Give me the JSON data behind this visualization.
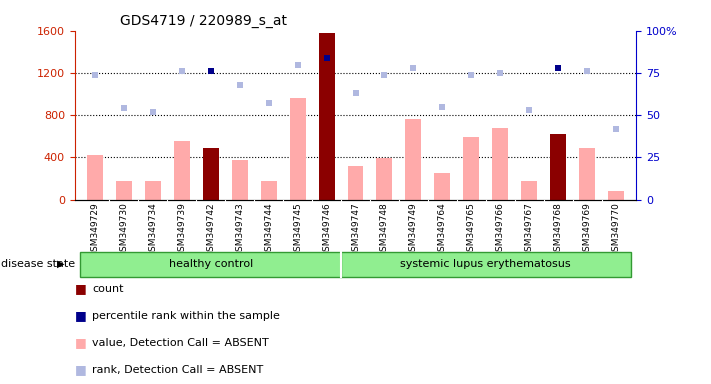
{
  "title": "GDS4719 / 220989_s_at",
  "samples": [
    "GSM349729",
    "GSM349730",
    "GSM349734",
    "GSM349739",
    "GSM349742",
    "GSM349743",
    "GSM349744",
    "GSM349745",
    "GSM349746",
    "GSM349747",
    "GSM349748",
    "GSM349749",
    "GSM349764",
    "GSM349765",
    "GSM349766",
    "GSM349767",
    "GSM349768",
    "GSM349769",
    "GSM349770"
  ],
  "n_healthy": 9,
  "bar_values": [
    420,
    175,
    175,
    560,
    490,
    375,
    175,
    960,
    1580,
    320,
    390,
    760,
    250,
    590,
    680,
    175,
    620,
    490,
    80
  ],
  "is_count": [
    false,
    false,
    false,
    false,
    true,
    false,
    false,
    false,
    true,
    false,
    false,
    false,
    false,
    false,
    false,
    false,
    true,
    false,
    false
  ],
  "rank_values_pct": [
    74,
    54,
    52,
    76,
    76,
    68,
    57,
    80,
    84,
    63,
    74,
    78,
    55,
    74,
    75,
    53,
    78,
    76,
    42
  ],
  "is_percentile": [
    false,
    false,
    false,
    false,
    true,
    false,
    false,
    false,
    true,
    false,
    false,
    false,
    false,
    false,
    false,
    false,
    true,
    false,
    false
  ],
  "ylim_left": [
    0,
    1600
  ],
  "ylim_right": [
    0,
    100
  ],
  "yticks_left": [
    0,
    400,
    800,
    1200,
    1600
  ],
  "yticks_right": [
    0,
    25,
    50,
    75,
    100
  ],
  "left_tick_labels": [
    "0",
    "400",
    "800",
    "1200",
    "1600"
  ],
  "right_tick_labels": [
    "0",
    "25",
    "50",
    "75",
    "100%"
  ],
  "color_value_bar": "#ffaaaa",
  "color_count_bar": "#8b0000",
  "color_rank_dot": "#b0b8e0",
  "color_percentile_dot": "#00008b",
  "color_left_axis": "#cc2200",
  "color_right_axis": "#0000cc",
  "color_group_box": "#90ee90",
  "color_group_border": "#339933",
  "color_xtick_bg": "#cccccc",
  "healthy_label": "healthy control",
  "sle_label": "systemic lupus erythematosus",
  "disease_state_label": "disease state",
  "legend": [
    {
      "label": "count",
      "color": "#8b0000"
    },
    {
      "label": "percentile rank within the sample",
      "color": "#00008b"
    },
    {
      "label": "value, Detection Call = ABSENT",
      "color": "#ffaaaa"
    },
    {
      "label": "rank, Detection Call = ABSENT",
      "color": "#b0b8e0"
    }
  ],
  "grid_lines": [
    400,
    800,
    1200
  ]
}
